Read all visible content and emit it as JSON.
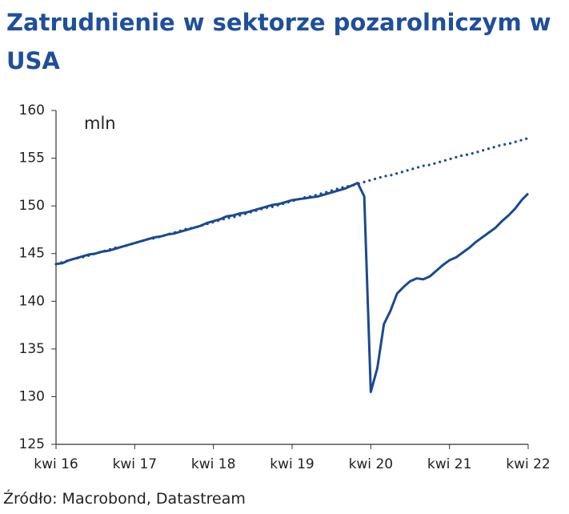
{
  "chart_data": {
    "type": "line",
    "title": "Zatrudnienie w sektorze pozarolniczym w USA",
    "annotation": "mln",
    "source": "Źródło: Macrobond, Datastream",
    "categories": [
      "kwi 16",
      null,
      null,
      null,
      null,
      null,
      null,
      null,
      null,
      null,
      null,
      null,
      "kwi 17",
      null,
      null,
      null,
      null,
      null,
      null,
      null,
      null,
      null,
      null,
      null,
      "kwi 18",
      null,
      null,
      null,
      null,
      null,
      null,
      null,
      null,
      null,
      null,
      null,
      "kwi 19",
      null,
      null,
      null,
      null,
      null,
      null,
      null,
      null,
      null,
      null,
      null,
      "kwi 20",
      null,
      null,
      null,
      null,
      null,
      null,
      null,
      null,
      null,
      null,
      null,
      "kwi 21",
      null,
      null,
      null,
      null,
      null,
      null,
      null,
      null,
      null,
      null,
      null,
      "kwi 22"
    ],
    "series": [
      {
        "color": "#1a4a8f",
        "style": "solid",
        "values": [
          143.9,
          144.0,
          144.3,
          144.5,
          144.7,
          144.9,
          145.0,
          145.2,
          145.3,
          145.5,
          145.7,
          145.9,
          146.1,
          146.3,
          146.5,
          146.7,
          146.8,
          147.0,
          147.1,
          147.3,
          147.5,
          147.7,
          147.9,
          148.2,
          148.4,
          148.6,
          148.9,
          149.0,
          149.2,
          149.3,
          149.5,
          149.7,
          149.9,
          150.1,
          150.2,
          150.4,
          150.6,
          150.7,
          150.8,
          150.9,
          151.0,
          151.2,
          151.4,
          151.6,
          151.8,
          152.1,
          152.4,
          151.0,
          130.5,
          133.0,
          137.6,
          139.0,
          140.8,
          141.5,
          142.1,
          142.4,
          142.3,
          142.6,
          143.2,
          143.8,
          144.3,
          144.6,
          145.1,
          145.6,
          146.2,
          146.7,
          147.2,
          147.7,
          148.4,
          149.0,
          149.7,
          150.6,
          151.3
        ]
      },
      {
        "color": "#1a4a8f",
        "style": "dotted",
        "values": [
          143.9,
          144.1,
          144.3,
          144.5,
          144.6,
          144.8,
          145.0,
          145.2,
          145.4,
          145.6,
          145.7,
          145.9,
          146.1,
          146.3,
          146.5,
          146.6,
          146.8,
          147.0,
          147.2,
          147.4,
          147.6,
          147.7,
          147.9,
          148.1,
          148.3,
          148.5,
          148.7,
          148.8,
          149.0,
          149.2,
          149.4,
          149.6,
          149.8,
          149.9,
          150.1,
          150.3,
          150.5,
          150.7,
          150.9,
          151.0,
          151.2,
          151.4,
          151.6,
          151.8,
          152.0,
          152.1,
          152.3,
          152.5,
          152.7,
          152.9,
          153.1,
          153.2,
          153.4,
          153.6,
          153.8,
          154.0,
          154.2,
          154.3,
          154.5,
          154.7,
          154.9,
          155.1,
          155.3,
          155.4,
          155.6,
          155.8,
          156.0,
          156.2,
          156.4,
          156.5,
          156.7,
          156.9,
          157.1
        ]
      }
    ],
    "ylim": [
      125,
      160
    ],
    "yticks": [
      125,
      130,
      135,
      140,
      145,
      150,
      155,
      160
    ],
    "grid": false
  }
}
